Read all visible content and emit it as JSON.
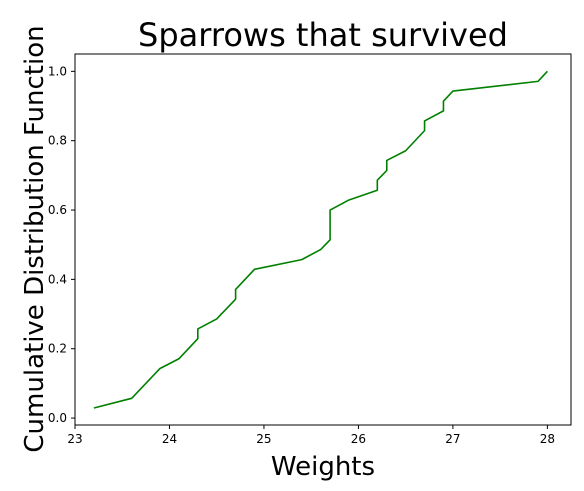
{
  "chart_data": {
    "type": "line",
    "title": "Sparrows that survived",
    "xlabel": "Weights",
    "ylabel": "Cumulative Distribution Function",
    "xlim": [
      23.0,
      28.25
    ],
    "ylim": [
      -0.02,
      1.05
    ],
    "xticks": [
      23,
      24,
      25,
      26,
      27,
      28
    ],
    "yticks": [
      0.0,
      0.2,
      0.4,
      0.6,
      0.8,
      1.0
    ],
    "xtick_labels": [
      "23",
      "24",
      "25",
      "26",
      "27",
      "28"
    ],
    "ytick_labels": [
      "0.0",
      "0.2",
      "0.4",
      "0.6",
      "0.8",
      "1.0"
    ],
    "grid": false,
    "line_color": "#008000",
    "series": [
      {
        "x": [
          23.2,
          23.6,
          23.9,
          24.1,
          24.3,
          24.3,
          24.5,
          24.7,
          24.7,
          24.9,
          25.4,
          25.6,
          25.7,
          25.7,
          25.9,
          26.2,
          26.2,
          26.3,
          26.3,
          26.5,
          26.7,
          26.7,
          26.9,
          26.9,
          27.0,
          27.9,
          28.0
        ],
        "y": [
          0.029,
          0.057,
          0.143,
          0.171,
          0.229,
          0.257,
          0.286,
          0.343,
          0.371,
          0.429,
          0.457,
          0.486,
          0.514,
          0.6,
          0.629,
          0.657,
          0.686,
          0.714,
          0.743,
          0.771,
          0.829,
          0.857,
          0.886,
          0.914,
          0.943,
          0.971,
          1.0
        ]
      }
    ]
  }
}
